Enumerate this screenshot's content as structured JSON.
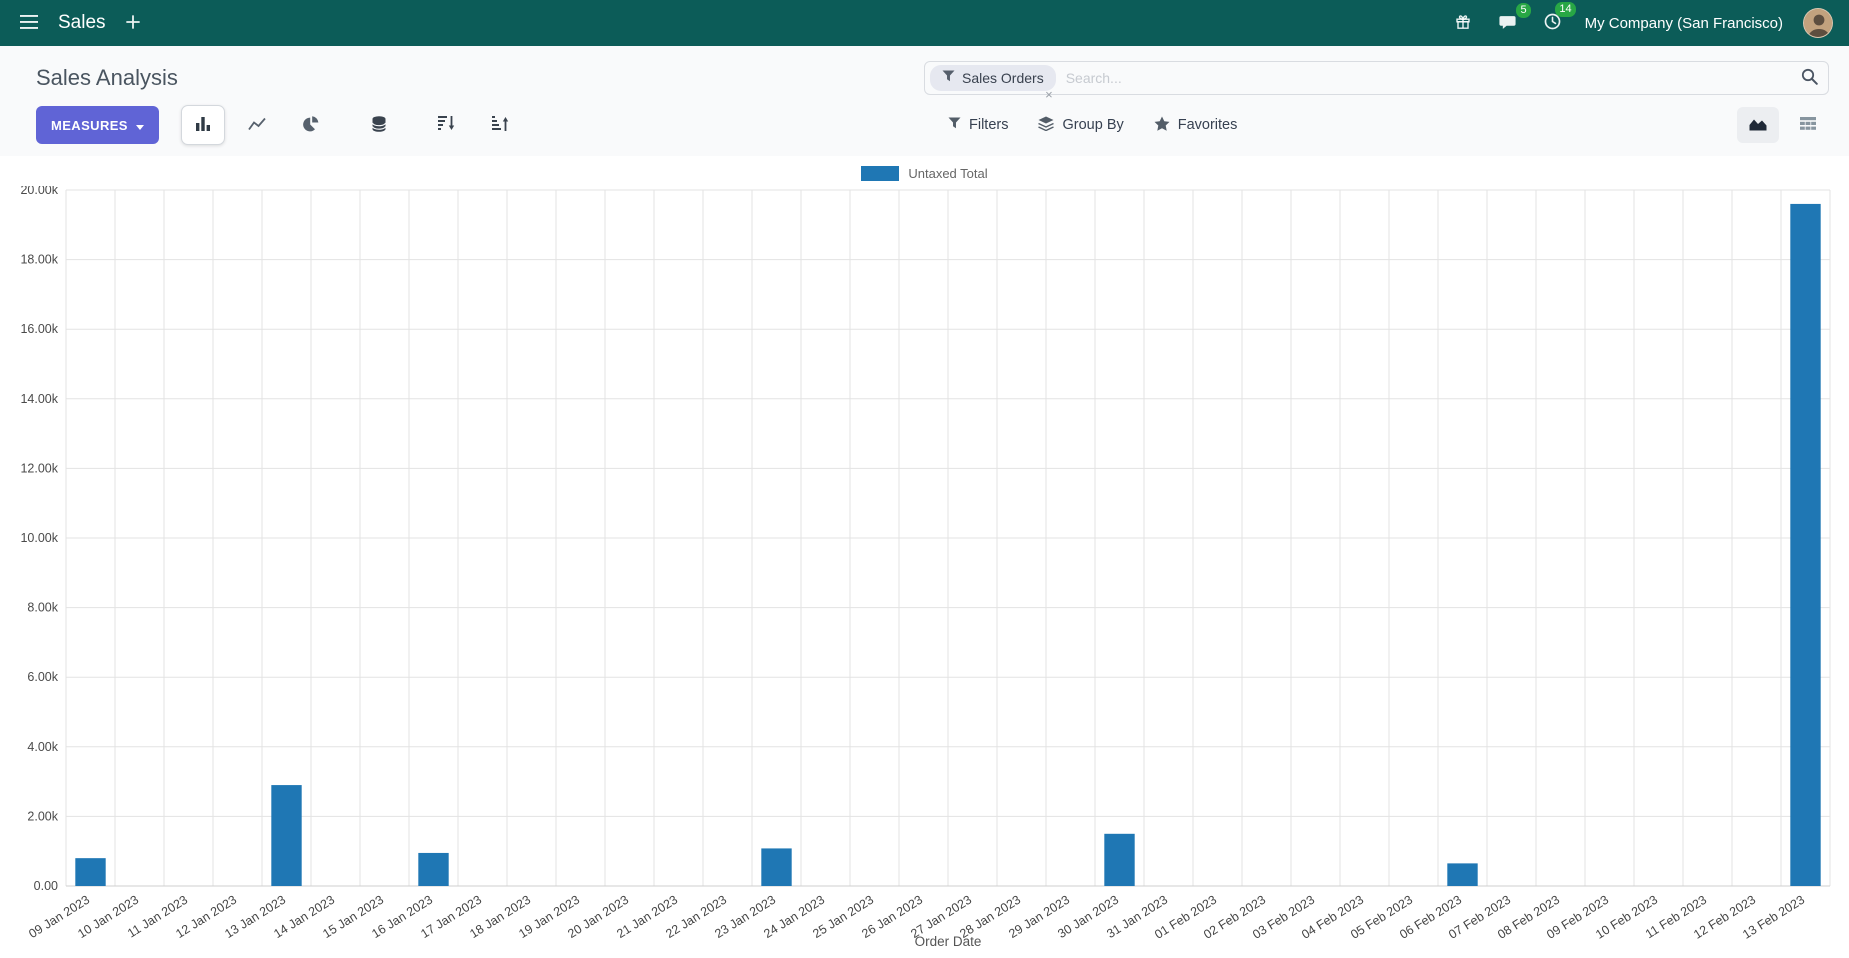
{
  "colors": {
    "navbar": "#0c5c58",
    "primary": "#6064d6",
    "badge": "#28a745",
    "bar": "#1f77b4",
    "panel": "#f9fafb",
    "facet": "#e6e8f0"
  },
  "navbar": {
    "app_name": "Sales",
    "messages_badge": "5",
    "activities_badge": "14",
    "company": "My Company (San Francisco)"
  },
  "control_panel": {
    "title": "Sales Analysis",
    "measures_label": "MEASURES",
    "filters_label": "Filters",
    "group_by_label": "Group By",
    "favorites_label": "Favorites",
    "search": {
      "facet": "Sales Orders",
      "facet_remove": "×",
      "placeholder": "Search..."
    }
  },
  "chart_data": {
    "type": "bar",
    "title": "",
    "xlabel": "Order Date",
    "ylabel": "",
    "ylim": [
      0,
      20000
    ],
    "grid": true,
    "legend_position": "top-center",
    "y_ticks": [
      "0.00",
      "2.00k",
      "4.00k",
      "6.00k",
      "8.00k",
      "10.00k",
      "12.00k",
      "14.00k",
      "16.00k",
      "18.00k",
      "20.00k"
    ],
    "categories": [
      "09 Jan 2023",
      "10 Jan 2023",
      "11 Jan 2023",
      "12 Jan 2023",
      "13 Jan 2023",
      "14 Jan 2023",
      "15 Jan 2023",
      "16 Jan 2023",
      "17 Jan 2023",
      "18 Jan 2023",
      "19 Jan 2023",
      "20 Jan 2023",
      "21 Jan 2023",
      "22 Jan 2023",
      "23 Jan 2023",
      "24 Jan 2023",
      "25 Jan 2023",
      "26 Jan 2023",
      "27 Jan 2023",
      "28 Jan 2023",
      "29 Jan 2023",
      "30 Jan 2023",
      "31 Jan 2023",
      "01 Feb 2023",
      "02 Feb 2023",
      "03 Feb 2023",
      "04 Feb 2023",
      "05 Feb 2023",
      "06 Feb 2023",
      "07 Feb 2023",
      "08 Feb 2023",
      "09 Feb 2023",
      "10 Feb 2023",
      "11 Feb 2023",
      "12 Feb 2023",
      "13 Feb 2023"
    ],
    "series": [
      {
        "name": "Untaxed Total",
        "color": "#1f77b4",
        "values": [
          800,
          0,
          0,
          0,
          2900,
          0,
          0,
          950,
          0,
          0,
          0,
          0,
          0,
          0,
          1080,
          0,
          0,
          0,
          0,
          0,
          0,
          1500,
          0,
          0,
          0,
          0,
          0,
          0,
          650,
          0,
          0,
          0,
          0,
          0,
          0,
          19600
        ]
      }
    ]
  }
}
